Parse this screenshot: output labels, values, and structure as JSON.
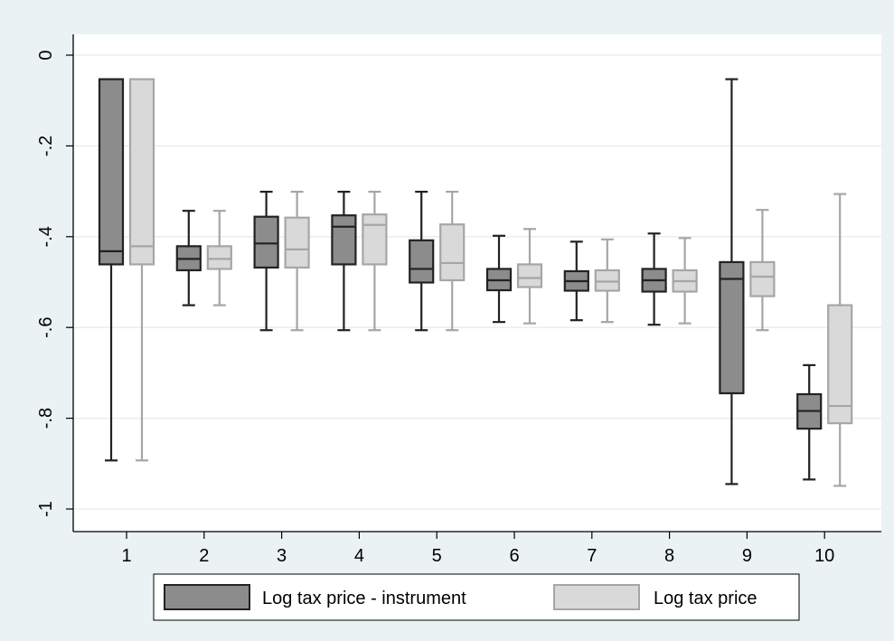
{
  "chart_data": {
    "type": "box",
    "title": "",
    "xlabel": "",
    "ylabel": "",
    "categories": [
      "1",
      "2",
      "3",
      "4",
      "5",
      "6",
      "7",
      "8",
      "9",
      "10"
    ],
    "ylim": [
      -1.05,
      0.05
    ],
    "yticks": [
      0,
      -0.2,
      -0.4,
      -0.6,
      -0.8,
      -1
    ],
    "ytick_labels": [
      "0",
      "-.2",
      "-.4",
      "-.6",
      "-.8",
      "-1"
    ],
    "grid": true,
    "legend_position": "bottom",
    "series": [
      {
        "name": "Log tax price - instrument",
        "fill": "#8c8c8c",
        "stroke": "#222222",
        "boxes": [
          {
            "min": -0.893,
            "q1": -0.461,
            "median": -0.432,
            "q3": -0.053,
            "max": -0.053
          },
          {
            "min": -0.551,
            "q1": -0.474,
            "median": -0.449,
            "q3": -0.421,
            "max": -0.343
          },
          {
            "min": -0.606,
            "q1": -0.468,
            "median": -0.415,
            "q3": -0.356,
            "max": -0.301
          },
          {
            "min": -0.606,
            "q1": -0.461,
            "median": -0.378,
            "q3": -0.353,
            "max": -0.301
          },
          {
            "min": -0.606,
            "q1": -0.501,
            "median": -0.471,
            "q3": -0.408,
            "max": -0.301
          },
          {
            "min": -0.588,
            "q1": -0.518,
            "median": -0.496,
            "q3": -0.471,
            "max": -0.398
          },
          {
            "min": -0.584,
            "q1": -0.519,
            "median": -0.498,
            "q3": -0.476,
            "max": -0.411
          },
          {
            "min": -0.594,
            "q1": -0.521,
            "median": -0.496,
            "q3": -0.471,
            "max": -0.393
          },
          {
            "min": -0.945,
            "q1": -0.745,
            "median": -0.493,
            "q3": -0.456,
            "max": -0.053
          },
          {
            "min": -0.935,
            "q1": -0.823,
            "median": -0.784,
            "q3": -0.747,
            "max": -0.683
          }
        ]
      },
      {
        "name": "Log tax price",
        "fill": "#d9d9d9",
        "stroke": "#a6a6a6",
        "boxes": [
          {
            "min": -0.893,
            "q1": -0.461,
            "median": -0.421,
            "q3": -0.053,
            "max": -0.053
          },
          {
            "min": -0.551,
            "q1": -0.471,
            "median": -0.449,
            "q3": -0.421,
            "max": -0.343
          },
          {
            "min": -0.606,
            "q1": -0.468,
            "median": -0.428,
            "q3": -0.358,
            "max": -0.301
          },
          {
            "min": -0.606,
            "q1": -0.461,
            "median": -0.374,
            "q3": -0.351,
            "max": -0.301
          },
          {
            "min": -0.606,
            "q1": -0.496,
            "median": -0.458,
            "q3": -0.373,
            "max": -0.301
          },
          {
            "min": -0.591,
            "q1": -0.511,
            "median": -0.491,
            "q3": -0.461,
            "max": -0.383
          },
          {
            "min": -0.588,
            "q1": -0.519,
            "median": -0.499,
            "q3": -0.474,
            "max": -0.406
          },
          {
            "min": -0.591,
            "q1": -0.521,
            "median": -0.498,
            "q3": -0.474,
            "max": -0.403
          },
          {
            "min": -0.606,
            "q1": -0.531,
            "median": -0.488,
            "q3": -0.456,
            "max": -0.341
          },
          {
            "min": -0.949,
            "q1": -0.811,
            "median": -0.773,
            "q3": -0.551,
            "max": -0.306
          }
        ]
      }
    ]
  }
}
